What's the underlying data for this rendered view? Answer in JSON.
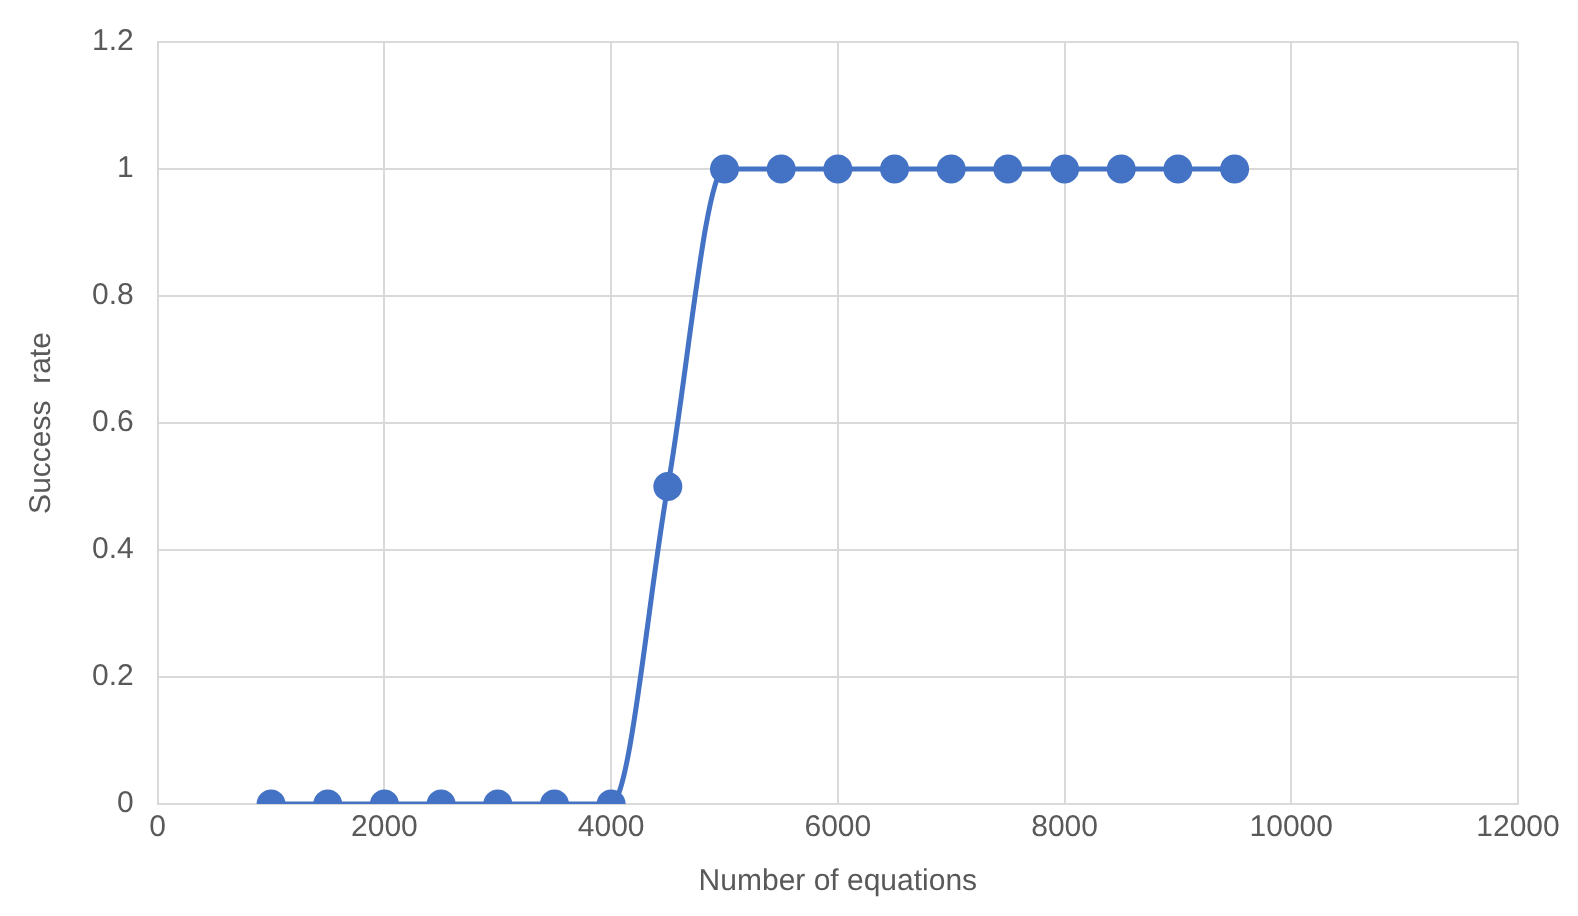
{
  "chart_data": {
    "type": "line",
    "xlabel": "Number of equations",
    "ylabel": "Success  rate",
    "x": [
      1000,
      1500,
      2000,
      2500,
      3000,
      3500,
      4000,
      4500,
      5000,
      5500,
      6000,
      6500,
      7000,
      7500,
      8000,
      8500,
      9000,
      9500
    ],
    "series": [
      {
        "color": "#4472c4",
        "values": [
          0,
          0,
          0,
          0,
          0,
          0,
          0,
          0.5,
          1,
          1,
          1,
          1,
          1,
          1,
          1,
          1,
          1,
          1
        ]
      }
    ],
    "xlim": [
      0,
      12000
    ],
    "xticks": [
      0,
      2000,
      4000,
      6000,
      8000,
      10000,
      12000
    ],
    "ylim": [
      0,
      1.2
    ],
    "yticks": [
      0,
      0.2,
      0.4,
      0.6,
      0.8,
      1,
      1.2
    ],
    "grid": true,
    "legend": false,
    "marker": "circle",
    "line_style": "solid"
  }
}
